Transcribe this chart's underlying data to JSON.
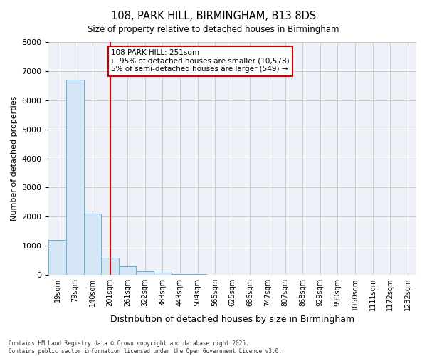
{
  "title_line1": "108, PARK HILL, BIRMINGHAM, B13 8DS",
  "title_line2": "Size of property relative to detached houses in Birmingham",
  "xlabel": "Distribution of detached houses by size in Birmingham",
  "ylabel": "Number of detached properties",
  "bin_labels": [
    "19sqm",
    "79sqm",
    "140sqm",
    "201sqm",
    "261sqm",
    "322sqm",
    "383sqm",
    "443sqm",
    "504sqm",
    "565sqm",
    "625sqm",
    "686sqm",
    "747sqm",
    "807sqm",
    "868sqm",
    "929sqm",
    "990sqm",
    "1050sqm",
    "1111sqm",
    "1172sqm",
    "1232sqm"
  ],
  "bar_heights": [
    1200,
    6700,
    2100,
    600,
    300,
    120,
    80,
    30,
    15,
    5,
    2,
    0,
    0,
    0,
    0,
    0,
    0,
    0,
    0,
    0,
    0
  ],
  "bar_color": "#d4e6f5",
  "bar_edge_color": "#6baed6",
  "vline_index": 3.0,
  "vline_color": "#cc0000",
  "annotation_text": "108 PARK HILL: 251sqm\n← 95% of detached houses are smaller (10,578)\n5% of semi-detached houses are larger (549) →",
  "annotation_box_facecolor": "#ffffff",
  "annotation_box_edgecolor": "#cc0000",
  "ylim": [
    0,
    8000
  ],
  "yticks": [
    0,
    1000,
    2000,
    3000,
    4000,
    5000,
    6000,
    7000,
    8000
  ],
  "grid_color": "#cccccc",
  "plot_bg_color": "#eef2f8",
  "footer_line1": "Contains HM Land Registry data © Crown copyright and database right 2025.",
  "footer_line2": "Contains public sector information licensed under the Open Government Licence v3.0."
}
